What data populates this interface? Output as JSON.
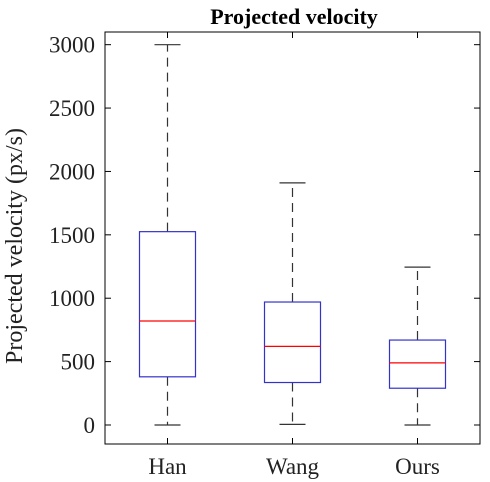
{
  "chart_data": {
    "type": "box",
    "title": "Projected velocity",
    "xlabel": "",
    "ylabel": "Projected velocity (px/s)",
    "categories": [
      "Han",
      "Wang",
      "Ours"
    ],
    "ylim": [
      -150,
      3100
    ],
    "yticks": [
      0,
      500,
      1000,
      1500,
      2000,
      2500,
      3000
    ],
    "grid": false,
    "boxes": [
      {
        "category": "Han",
        "min": 0,
        "q1": 380,
        "median": 820,
        "q3": 1525,
        "max": 3000
      },
      {
        "category": "Wang",
        "min": 5,
        "q1": 335,
        "median": 620,
        "q3": 970,
        "max": 1910
      },
      {
        "category": "Ours",
        "min": 0,
        "q1": 290,
        "median": 490,
        "q3": 670,
        "max": 1245
      }
    ],
    "colors": {
      "box": "#3333cc",
      "median": "#ff0000",
      "whisker": "#333333",
      "axis": "#000000"
    }
  }
}
